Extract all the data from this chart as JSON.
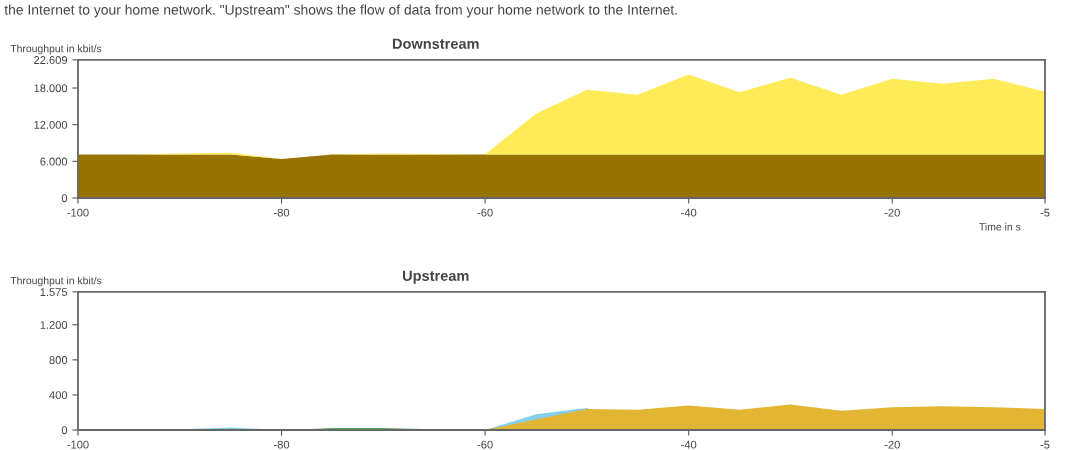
{
  "chart_data": [
    {
      "type": "area",
      "stacked": true,
      "title": "Downstream",
      "ylabel": "Throughput in kbit/s",
      "xlabel": "Time in s",
      "annotations": [
        "the Internet to your home network. \"Upstream\" shows the flow of data from your home network to the Internet."
      ],
      "x": [
        -100,
        -95,
        -90,
        -85,
        -80,
        -75,
        -70,
        -65,
        -60,
        -55,
        -50,
        -45,
        -40,
        -35,
        -30,
        -25,
        -20,
        -15,
        -10,
        -5
      ],
      "series": [
        {
          "color": "#997300",
          "values": [
            7100,
            7100,
            7100,
            7100,
            6400,
            7100,
            7100,
            7100,
            7100,
            7100,
            7100,
            7100,
            7100,
            7100,
            7100,
            7100,
            7100,
            7100,
            7100,
            7100
          ]
        },
        {
          "color": "#ffeb57",
          "values": [
            0,
            0,
            200,
            300,
            0,
            0,
            200,
            100,
            0,
            6700,
            10600,
            9800,
            13100,
            10200,
            12600,
            9800,
            12400,
            11600,
            12400,
            10300
          ]
        }
      ],
      "xlim": [
        -100,
        -5
      ],
      "xticks": [
        -100,
        -80,
        -60,
        -40,
        -20,
        -5
      ],
      "ylim": [
        0,
        22609
      ],
      "yticks": [
        0,
        {
          "value": 6000,
          "label": "6.000"
        },
        {
          "value": 12000,
          "label": "12.000"
        },
        {
          "value": 18000,
          "label": "18.000"
        },
        {
          "value": 22609,
          "label": "22.609"
        }
      ]
    },
    {
      "type": "area",
      "title": "Upstream",
      "ylabel": "Throughput in kbit/s",
      "x": [
        -100,
        -95,
        -90,
        -85,
        -80,
        -75,
        -70,
        -65,
        -60,
        -55,
        -50,
        -45,
        -40,
        -35,
        -30,
        -25,
        -20,
        -15,
        -10,
        -5
      ],
      "series": [
        {
          "color": "#87ceeb",
          "values": [
            0,
            0,
            10,
            30,
            0,
            0,
            0,
            0,
            0,
            180,
            250,
            0,
            0,
            0,
            0,
            0,
            0,
            0,
            0,
            0
          ]
        },
        {
          "color": "#228b22",
          "values": [
            0,
            0,
            10,
            0,
            0,
            20,
            20,
            10,
            0,
            0,
            0,
            0,
            0,
            0,
            0,
            0,
            0,
            0,
            0,
            0
          ]
        },
        {
          "color": "#e2b533",
          "values": [
            0,
            0,
            0,
            0,
            0,
            0,
            0,
            0,
            0,
            120,
            240,
            230,
            280,
            230,
            290,
            220,
            260,
            270,
            260,
            240
          ]
        }
      ],
      "xlim": [
        -100,
        -5
      ],
      "xticks": [
        -100,
        -80,
        -60,
        -40,
        -20,
        -5
      ],
      "ylim": [
        0,
        1575
      ],
      "yticks": [
        0,
        400,
        800,
        {
          "value": 1200,
          "label": "1.200"
        },
        {
          "value": 1575,
          "label": "1.575"
        }
      ]
    }
  ]
}
